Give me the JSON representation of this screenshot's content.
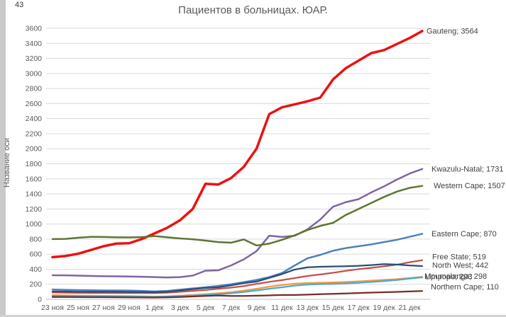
{
  "page": {
    "corner_text": "43"
  },
  "colors": {
    "title": "#595959",
    "axis_ticks": "#595959",
    "gridline": "#d9d9d9",
    "axis_line": "#bfbfbf",
    "series_labels": "#404040",
    "background": "#ffffff"
  },
  "chart_data": {
    "type": "line",
    "title": "Пациентов в больницах. ЮАР.",
    "xlabel": "",
    "ylabel": "Название оси",
    "ylim": [
      0,
      3600
    ],
    "ytick_step": 200,
    "grid": true,
    "legend_position": "none (end-of-line data labels)",
    "x_tick_labels": [
      "23 ноя",
      "25 ноя",
      "27 ноя",
      "29 ноя",
      "1 дек",
      "3 дек",
      "5 дек",
      "7 дек",
      "9 дек",
      "11 дек",
      "13 дек",
      "15 дек",
      "17 дек",
      "19 дек",
      "21 дек"
    ],
    "x": [
      "23 ноя",
      "24 ноя",
      "25 ноя",
      "26 ноя",
      "27 ноя",
      "28 ноя",
      "29 ноя",
      "30 ноя",
      "1 дек",
      "2 дек",
      "3 дек",
      "4 дек",
      "5 дек",
      "6 дек",
      "7 дек",
      "8 дек",
      "9 дек",
      "10 дек",
      "11 дек",
      "12 дек",
      "13 дек",
      "14 дек",
      "15 дек",
      "16 дек",
      "17 дек",
      "18 дек",
      "19 дек",
      "20 дек",
      "21 дек",
      "22 дек"
    ],
    "series": [
      {
        "name": "Gauteng",
        "end_label": "Gauteng; 3564",
        "end_value": 3564,
        "color": "#ed1111",
        "width": 3.5,
        "label_dx": 6,
        "label_dy": 0,
        "values": [
          560,
          575,
          605,
          655,
          705,
          740,
          745,
          800,
          875,
          950,
          1050,
          1200,
          1535,
          1525,
          1610,
          1760,
          2000,
          2460,
          2550,
          2590,
          2630,
          2680,
          2920,
          3070,
          3170,
          3270,
          3310,
          3390,
          3470,
          3564
        ]
      },
      {
        "name": "Kwazulu-Natal",
        "end_label": "Kwazulu-Natal; 1731",
        "end_value": 1731,
        "color": "#8064a2",
        "width": 2.5,
        "label_dx": 13,
        "label_dy": 0,
        "values": [
          320,
          318,
          315,
          310,
          307,
          305,
          303,
          300,
          295,
          290,
          295,
          315,
          380,
          385,
          450,
          530,
          640,
          845,
          828,
          845,
          930,
          1060,
          1230,
          1290,
          1330,
          1420,
          1500,
          1590,
          1670,
          1731
        ]
      },
      {
        "name": "Western Cape",
        "end_label": "Western Cape; 1507",
        "end_value": 1507,
        "color": "#5f7530",
        "width": 2.5,
        "label_dx": 16,
        "label_dy": 0,
        "values": [
          800,
          802,
          818,
          830,
          828,
          824,
          822,
          826,
          840,
          824,
          808,
          798,
          780,
          760,
          752,
          795,
          715,
          740,
          790,
          850,
          920,
          975,
          1015,
          1120,
          1200,
          1280,
          1360,
          1430,
          1480,
          1507
        ]
      },
      {
        "name": "Eastern Cape",
        "end_label": "Eastern Cape; 870",
        "end_value": 870,
        "color": "#4f81bd",
        "width": 2.5,
        "label_dx": 13,
        "label_dy": 0,
        "values": [
          130,
          126,
          122,
          120,
          118,
          118,
          116,
          112,
          105,
          112,
          128,
          145,
          160,
          178,
          200,
          228,
          258,
          295,
          350,
          450,
          545,
          590,
          645,
          680,
          705,
          730,
          760,
          790,
          830,
          870
        ]
      },
      {
        "name": "Free State",
        "end_label": "Free State; 519",
        "end_value": 519,
        "color": "#c0504d",
        "width": 2.25,
        "label_dx": 14,
        "label_dy": -5,
        "values": [
          90,
          88,
          86,
          85,
          85,
          84,
          84,
          83,
          82,
          88,
          100,
          112,
          125,
          140,
          155,
          175,
          205,
          232,
          255,
          282,
          310,
          330,
          352,
          378,
          400,
          418,
          438,
          460,
          492,
          519
        ]
      },
      {
        "name": "North West",
        "end_label": "North West; 442",
        "end_value": 442,
        "color": "#2c4d75",
        "width": 2.25,
        "label_dx": 14,
        "label_dy": -1,
        "values": [
          105,
          103,
          100,
          100,
          100,
          100,
          98,
          96,
          95,
          100,
          118,
          135,
          152,
          160,
          185,
          215,
          235,
          285,
          335,
          395,
          425,
          432,
          436,
          440,
          445,
          455,
          468,
          462,
          450,
          442
        ]
      },
      {
        "name": "Mpumalanga",
        "end_label": "Mpumalanga; 298",
        "end_value": 298,
        "color": "#f79646",
        "width": 2.25,
        "label_dx": 3,
        "label_dy": -1,
        "values": [
          55,
          53,
          50,
          48,
          46,
          45,
          43,
          40,
          36,
          40,
          48,
          58,
          68,
          80,
          95,
          115,
          140,
          168,
          190,
          208,
          216,
          220,
          224,
          230,
          238,
          248,
          258,
          268,
          283,
          298
        ]
      },
      {
        "name": "Limpopo",
        "end_label": "Limpopo; 293",
        "end_value": 293,
        "color": "#4bacc6",
        "width": 2.25,
        "label_dx": 4,
        "label_dy": -1,
        "values": [
          45,
          43,
          41,
          40,
          39,
          38,
          36,
          34,
          32,
          36,
          42,
          50,
          58,
          68,
          80,
          98,
          118,
          140,
          160,
          182,
          196,
          202,
          206,
          212,
          220,
          230,
          242,
          256,
          275,
          293
        ]
      },
      {
        "name": "Northern Cape",
        "end_label": "Northern Cape; 110",
        "end_value": 110,
        "color": "#772c2a",
        "width": 2.25,
        "label_dx": 12,
        "label_dy": -6,
        "values": [
          30,
          30,
          29,
          28,
          28,
          27,
          26,
          25,
          24,
          26,
          30,
          38,
          45,
          50,
          45,
          45,
          48,
          52,
          57,
          58,
          62,
          68,
          73,
          78,
          84,
          89,
          94,
          99,
          104,
          110
        ]
      }
    ]
  }
}
